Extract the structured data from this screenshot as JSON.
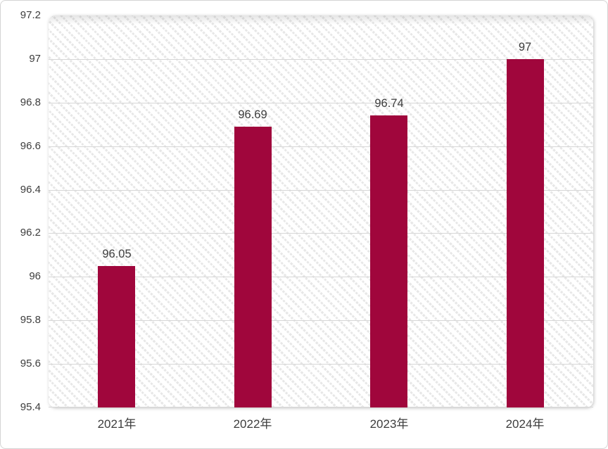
{
  "chart_data": {
    "type": "bar",
    "categories": [
      "2021年",
      "2022年",
      "2023年",
      "2024年"
    ],
    "values": [
      96.05,
      96.69,
      96.74,
      97
    ],
    "value_labels": [
      "96.05",
      "96.69",
      "96.74",
      "97"
    ],
    "title": "",
    "xlabel": "",
    "ylabel": "",
    "ylim": [
      95.4,
      97.2
    ],
    "y_step": 0.2,
    "y_tick_labels": [
      "97.2",
      "97",
      "96.8",
      "96.6",
      "96.4",
      "96.2",
      "96",
      "95.8",
      "95.6",
      "95.4"
    ],
    "grid": true,
    "legend_position": "none",
    "colors": {
      "bar": "#a0063c",
      "gridline": "#d6d6d6",
      "text": "#3d3d3d",
      "plot_hatch_stripe": "#e7e7e7",
      "card_border": "#d4d4d4",
      "background": "#ffffff"
    }
  }
}
